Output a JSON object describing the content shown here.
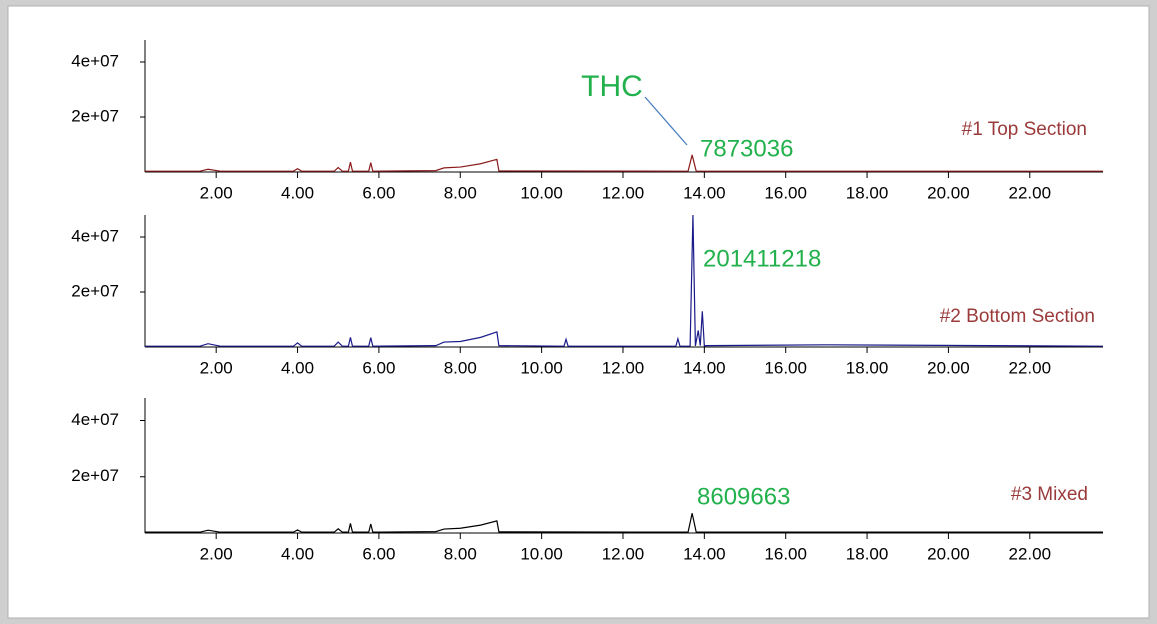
{
  "chart_data": [
    {
      "type": "line",
      "peak_label": "THC",
      "annotation": "7873036",
      "x": [
        0.25,
        1.6,
        1.8,
        2.1,
        3.9,
        4.0,
        4.1,
        4.9,
        5.0,
        5.1,
        5.25,
        5.3,
        5.35,
        5.75,
        5.8,
        5.85,
        7.4,
        7.6,
        8.0,
        8.5,
        8.9,
        8.95,
        13.6,
        13.7,
        13.8,
        23.8
      ],
      "series": [
        {
          "name": "#1 Top Section",
          "color": "#8b1a1a",
          "values": [
            300000,
            300000,
            1000000,
            300000,
            300000,
            1200000,
            300000,
            300000,
            1600000,
            300000,
            300000,
            3600000,
            300000,
            300000,
            3400000,
            300000,
            500000,
            1500000,
            1800000,
            3000000,
            4600000,
            400000,
            300000,
            6200000,
            300000,
            300000
          ]
        }
      ],
      "xlim": [
        0.25,
        23.8
      ],
      "xticks": [
        {
          "value": 2,
          "label": "2.00"
        },
        {
          "value": 4,
          "label": "4.00"
        },
        {
          "value": 6,
          "label": "6.00"
        },
        {
          "value": 8,
          "label": "8.00"
        },
        {
          "value": 10,
          "label": "10.00"
        },
        {
          "value": 12,
          "label": "12.00"
        },
        {
          "value": 14,
          "label": "14.00"
        },
        {
          "value": 16,
          "label": "16.00"
        },
        {
          "value": 18,
          "label": "18.00"
        },
        {
          "value": 20,
          "label": "20.00"
        },
        {
          "value": 22,
          "label": "22.00"
        }
      ],
      "ylim": [
        0,
        48000000
      ],
      "yticks": [
        {
          "value": 20000000,
          "label": "2e+07"
        },
        {
          "value": 40000000,
          "label": "4e+07"
        }
      ]
    },
    {
      "type": "line",
      "annotation": "201411218",
      "x": [
        0.25,
        1.6,
        1.8,
        2.1,
        3.9,
        4.0,
        4.1,
        4.9,
        5.0,
        5.1,
        5.25,
        5.3,
        5.35,
        5.75,
        5.8,
        5.85,
        7.4,
        7.6,
        8.0,
        8.5,
        8.9,
        8.95,
        10.55,
        10.6,
        10.65,
        13.3,
        13.35,
        13.4,
        13.65,
        13.72,
        13.78,
        13.85,
        13.9,
        13.95,
        14.0,
        14.05,
        17.0,
        23.8
      ],
      "series": [
        {
          "name": "#2 Bottom Section",
          "color": "#1a1a8b",
          "values": [
            300000,
            300000,
            1200000,
            300000,
            300000,
            1500000,
            300000,
            300000,
            1800000,
            300000,
            300000,
            3500000,
            300000,
            300000,
            3400000,
            300000,
            500000,
            1800000,
            2000000,
            3500000,
            5500000,
            500000,
            300000,
            2800000,
            300000,
            300000,
            3000000,
            300000,
            300000,
            48000000,
            400000,
            6000000,
            500000,
            13000000,
            400000,
            500000,
            800000,
            300000
          ]
        }
      ],
      "xlim": [
        0.25,
        23.8
      ],
      "xticks": [
        {
          "value": 2,
          "label": "2.00"
        },
        {
          "value": 4,
          "label": "4.00"
        },
        {
          "value": 6,
          "label": "6.00"
        },
        {
          "value": 8,
          "label": "8.00"
        },
        {
          "value": 10,
          "label": "10.00"
        },
        {
          "value": 12,
          "label": "12.00"
        },
        {
          "value": 14,
          "label": "14.00"
        },
        {
          "value": 16,
          "label": "16.00"
        },
        {
          "value": 18,
          "label": "18.00"
        },
        {
          "value": 20,
          "label": "20.00"
        },
        {
          "value": 22,
          "label": "22.00"
        }
      ],
      "ylim": [
        0,
        48000000
      ],
      "yticks": [
        {
          "value": 20000000,
          "label": "2e+07"
        },
        {
          "value": 40000000,
          "label": "4e+07"
        }
      ]
    },
    {
      "type": "line",
      "annotation": "8609663",
      "x": [
        0.25,
        1.6,
        1.8,
        2.1,
        3.9,
        4.0,
        4.1,
        4.9,
        5.0,
        5.1,
        5.25,
        5.3,
        5.35,
        5.75,
        5.8,
        5.85,
        7.4,
        7.6,
        8.0,
        8.5,
        8.9,
        8.95,
        13.6,
        13.7,
        13.8,
        23.8
      ],
      "series": [
        {
          "name": "#3 Mixed",
          "color": "#000000",
          "values": [
            300000,
            300000,
            1000000,
            300000,
            300000,
            1100000,
            300000,
            300000,
            1500000,
            300000,
            300000,
            3400000,
            300000,
            300000,
            3200000,
            300000,
            500000,
            1400000,
            1700000,
            2800000,
            4300000,
            400000,
            300000,
            7000000,
            300000,
            300000
          ]
        }
      ],
      "xlim": [
        0.25,
        23.8
      ],
      "xticks": [
        {
          "value": 2,
          "label": "2.00"
        },
        {
          "value": 4,
          "label": "4.00"
        },
        {
          "value": 6,
          "label": "6.00"
        },
        {
          "value": 8,
          "label": "8.00"
        },
        {
          "value": 10,
          "label": "10.00"
        },
        {
          "value": 12,
          "label": "12.00"
        },
        {
          "value": 14,
          "label": "14.00"
        },
        {
          "value": 16,
          "label": "16.00"
        },
        {
          "value": 18,
          "label": "18.00"
        },
        {
          "value": 20,
          "label": "20.00"
        },
        {
          "value": 22,
          "label": "22.00"
        }
      ],
      "ylim": [
        0,
        48000000
      ],
      "yticks": [
        {
          "value": 20000000,
          "label": "2e+07"
        },
        {
          "value": 40000000,
          "label": "4e+07"
        }
      ]
    }
  ]
}
